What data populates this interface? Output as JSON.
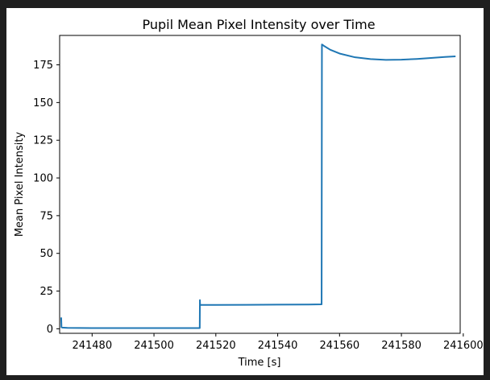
{
  "chart_data": {
    "type": "line",
    "title": "Pupil Mean Pixel Intensity over Time",
    "xlabel": "Time [s]",
    "ylabel": "Mean Pixel Intensity",
    "xlim": [
      241469.5,
      241599
    ],
    "ylim": [
      -3,
      194.5
    ],
    "xticks": [
      241480,
      241500,
      241520,
      241540,
      241560,
      241580,
      241600
    ],
    "yticks": [
      0,
      25,
      50,
      75,
      100,
      125,
      150,
      175
    ],
    "grid": false,
    "line_color": "#1f77b4",
    "series": [
      {
        "x": [
          241470.0,
          241470.1,
          241470.3,
          241472,
          241480,
          241490,
          241500,
          241510,
          241514.8,
          241514.85,
          241514.9,
          241515.0,
          241515.2,
          241520,
          241530,
          241540,
          241550,
          241554.2,
          241554.3,
          241555,
          241557,
          241560,
          241565,
          241570,
          241575,
          241580,
          241585,
          241590,
          241594,
          241597.5
        ],
        "y": [
          7.5,
          1.0,
          0.8,
          0.6,
          0.5,
          0.5,
          0.5,
          0.5,
          0.5,
          19.0,
          16.0,
          15.6,
          15.8,
          15.8,
          15.9,
          16.0,
          16.1,
          16.2,
          188.5,
          187.5,
          185.0,
          182.5,
          180.0,
          178.8,
          178.3,
          178.4,
          178.9,
          179.6,
          180.2,
          180.6
        ]
      }
    ]
  }
}
